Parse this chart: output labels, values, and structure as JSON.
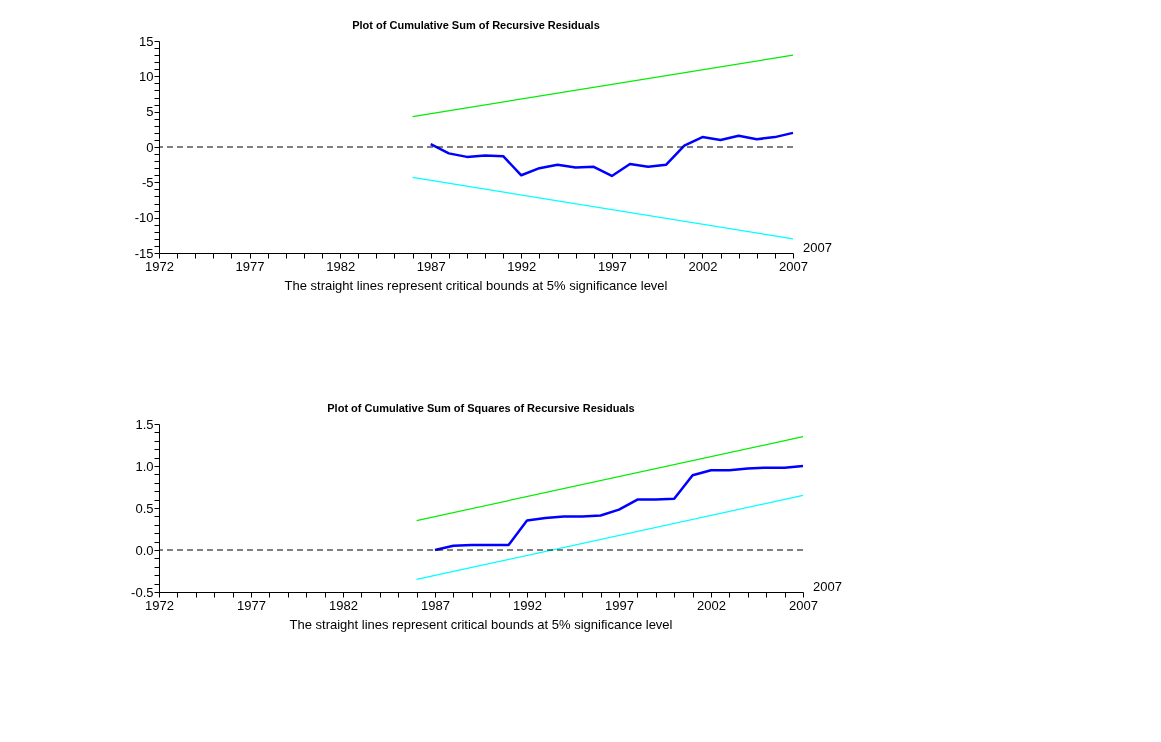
{
  "chart_data": [
    {
      "type": "line",
      "title": "Plot of Cumulative Sum of Recursive Residuals",
      "series": [
        {
          "color": "#00ee00",
          "x": [
            1986,
            2007
          ],
          "values": [
            4.3,
            13.0
          ]
        },
        {
          "color": "#00ffff",
          "x": [
            1986,
            2007
          ],
          "values": [
            -4.3,
            -13.0
          ]
        },
        {
          "color": "#0000ff",
          "x": [
            1987,
            1988,
            1989,
            1990,
            1991,
            1992,
            1993,
            1994,
            1995,
            1996,
            1997,
            1998,
            1999,
            2000,
            2001,
            2002,
            2003,
            2004,
            2005,
            2006,
            2007
          ],
          "values": [
            0.4,
            -0.9,
            -1.4,
            -1.2,
            -1.3,
            -4.0,
            -3.0,
            -2.5,
            -2.9,
            -2.8,
            -4.1,
            -2.4,
            -2.8,
            -2.5,
            0.2,
            1.4,
            1.0,
            1.6,
            1.1,
            1.4,
            2.0
          ]
        }
      ],
      "xlim": [
        1972,
        2007
      ],
      "xticks": [
        1972,
        {
          "value": 1973,
          "label": null
        },
        {
          "value": 1974,
          "label": null
        },
        {
          "value": 1975,
          "label": null
        },
        {
          "value": 1976,
          "label": null
        },
        1977,
        {
          "value": 1978,
          "label": null
        },
        {
          "value": 1979,
          "label": null
        },
        {
          "value": 1980,
          "label": null
        },
        {
          "value": 1981,
          "label": null
        },
        1982,
        {
          "value": 1983,
          "label": null
        },
        {
          "value": 1984,
          "label": null
        },
        {
          "value": 1985,
          "label": null
        },
        {
          "value": 1986,
          "label": null
        },
        1987,
        {
          "value": 1988,
          "label": null
        },
        {
          "value": 1989,
          "label": null
        },
        {
          "value": 1990,
          "label": null
        },
        {
          "value": 1991,
          "label": null
        },
        1992,
        {
          "value": 1993,
          "label": null
        },
        {
          "value": 1994,
          "label": null
        },
        {
          "value": 1995,
          "label": null
        },
        {
          "value": 1996,
          "label": null
        },
        1997,
        {
          "value": 1998,
          "label": null
        },
        {
          "value": 1999,
          "label": null
        },
        {
          "value": 2000,
          "label": null
        },
        {
          "value": 2001,
          "label": null
        },
        2002,
        {
          "value": 2003,
          "label": null
        },
        {
          "value": 2004,
          "label": null
        },
        {
          "value": 2005,
          "label": null
        },
        {
          "value": 2006,
          "label": null
        },
        2007
      ],
      "ylim": [
        -15,
        15
      ],
      "yticks": [
        -15,
        {
          "value": -14,
          "label": null
        },
        {
          "value": -13,
          "label": null
        },
        {
          "value": -12,
          "label": null
        },
        {
          "value": -11,
          "label": null
        },
        -10,
        {
          "value": -9,
          "label": null
        },
        {
          "value": -8,
          "label": null
        },
        {
          "value": -7,
          "label": null
        },
        {
          "value": -6,
          "label": null
        },
        -5,
        {
          "value": -4,
          "label": null
        },
        {
          "value": -3,
          "label": null
        },
        {
          "value": -2,
          "label": null
        },
        {
          "value": -1,
          "label": null
        },
        0,
        {
          "value": 1,
          "label": null
        },
        {
          "value": 2,
          "label": null
        },
        {
          "value": 3,
          "label": null
        },
        {
          "value": 4,
          "label": null
        },
        5,
        {
          "value": 6,
          "label": null
        },
        {
          "value": 7,
          "label": null
        },
        {
          "value": 8,
          "label": null
        },
        {
          "value": 9,
          "label": null
        },
        10,
        {
          "value": 11,
          "label": null
        },
        {
          "value": 12,
          "label": null
        },
        {
          "value": 13,
          "label": null
        },
        {
          "value": 14,
          "label": null
        },
        15
      ],
      "ref_lines": [
        {
          "axis": "y",
          "value": 0,
          "color": "#000000",
          "line_style": "dashed"
        }
      ],
      "annotations": [
        "The straight lines represent critical bounds at 5% significance level",
        "2007"
      ],
      "grid": false,
      "marker": "none",
      "line_style": "solid"
    },
    {
      "type": "line",
      "title": "Plot of Cumulative Sum of Squares of Recursive Residuals",
      "series": [
        {
          "color": "#00ee00",
          "x": [
            1986,
            2007
          ],
          "values": [
            0.35,
            1.35
          ]
        },
        {
          "color": "#00ffff",
          "x": [
            1986,
            2007
          ],
          "values": [
            -0.35,
            0.65
          ]
        },
        {
          "color": "#0000ff",
          "x": [
            1987,
            1988,
            1989,
            1990,
            1991,
            1992,
            1993,
            1994,
            1995,
            1996,
            1997,
            1998,
            1999,
            2000,
            2001,
            2002,
            2003,
            2004,
            2005,
            2006,
            2007
          ],
          "values": [
            0.0,
            0.05,
            0.06,
            0.06,
            0.06,
            0.35,
            0.38,
            0.4,
            0.4,
            0.41,
            0.48,
            0.6,
            0.6,
            0.61,
            0.89,
            0.95,
            0.95,
            0.97,
            0.98,
            0.98,
            1.0
          ]
        }
      ],
      "xlim": [
        1972,
        2007
      ],
      "xticks": [
        1972,
        {
          "value": 1973,
          "label": null
        },
        {
          "value": 1974,
          "label": null
        },
        {
          "value": 1975,
          "label": null
        },
        {
          "value": 1976,
          "label": null
        },
        1977,
        {
          "value": 1978,
          "label": null
        },
        {
          "value": 1979,
          "label": null
        },
        {
          "value": 1980,
          "label": null
        },
        {
          "value": 1981,
          "label": null
        },
        1982,
        {
          "value": 1983,
          "label": null
        },
        {
          "value": 1984,
          "label": null
        },
        {
          "value": 1985,
          "label": null
        },
        {
          "value": 1986,
          "label": null
        },
        1987,
        {
          "value": 1988,
          "label": null
        },
        {
          "value": 1989,
          "label": null
        },
        {
          "value": 1990,
          "label": null
        },
        {
          "value": 1991,
          "label": null
        },
        1992,
        {
          "value": 1993,
          "label": null
        },
        {
          "value": 1994,
          "label": null
        },
        {
          "value": 1995,
          "label": null
        },
        {
          "value": 1996,
          "label": null
        },
        1997,
        {
          "value": 1998,
          "label": null
        },
        {
          "value": 1999,
          "label": null
        },
        {
          "value": 2000,
          "label": null
        },
        {
          "value": 2001,
          "label": null
        },
        2002,
        {
          "value": 2003,
          "label": null
        },
        {
          "value": 2004,
          "label": null
        },
        {
          "value": 2005,
          "label": null
        },
        {
          "value": 2006,
          "label": null
        },
        2007
      ],
      "ylim": [
        -0.5,
        1.5
      ],
      "yticks": [
        -0.5,
        {
          "value": -0.4,
          "label": null
        },
        {
          "value": -0.3,
          "label": null
        },
        {
          "value": -0.2,
          "label": null
        },
        {
          "value": -0.1,
          "label": null
        },
        {
          "value": 0,
          "label": "0.0"
        },
        {
          "value": 0.1,
          "label": null
        },
        {
          "value": 0.2,
          "label": null
        },
        {
          "value": 0.3,
          "label": null
        },
        {
          "value": 0.4,
          "label": null
        },
        0.5,
        {
          "value": 0.6,
          "label": null
        },
        {
          "value": 0.7,
          "label": null
        },
        {
          "value": 0.8,
          "label": null
        },
        {
          "value": 0.9,
          "label": null
        },
        {
          "value": 1,
          "label": "1.0"
        },
        {
          "value": 1.1,
          "label": null
        },
        {
          "value": 1.2,
          "label": null
        },
        {
          "value": 1.3,
          "label": null
        },
        {
          "value": 1.4,
          "label": null
        },
        1.5
      ],
      "ref_lines": [
        {
          "axis": "y",
          "value": 0,
          "color": "#000000",
          "line_style": "dashed"
        }
      ],
      "annotations": [
        "The straight lines represent critical bounds at 5% significance level",
        "2007"
      ],
      "grid": false,
      "marker": "none",
      "line_style": "solid"
    }
  ]
}
